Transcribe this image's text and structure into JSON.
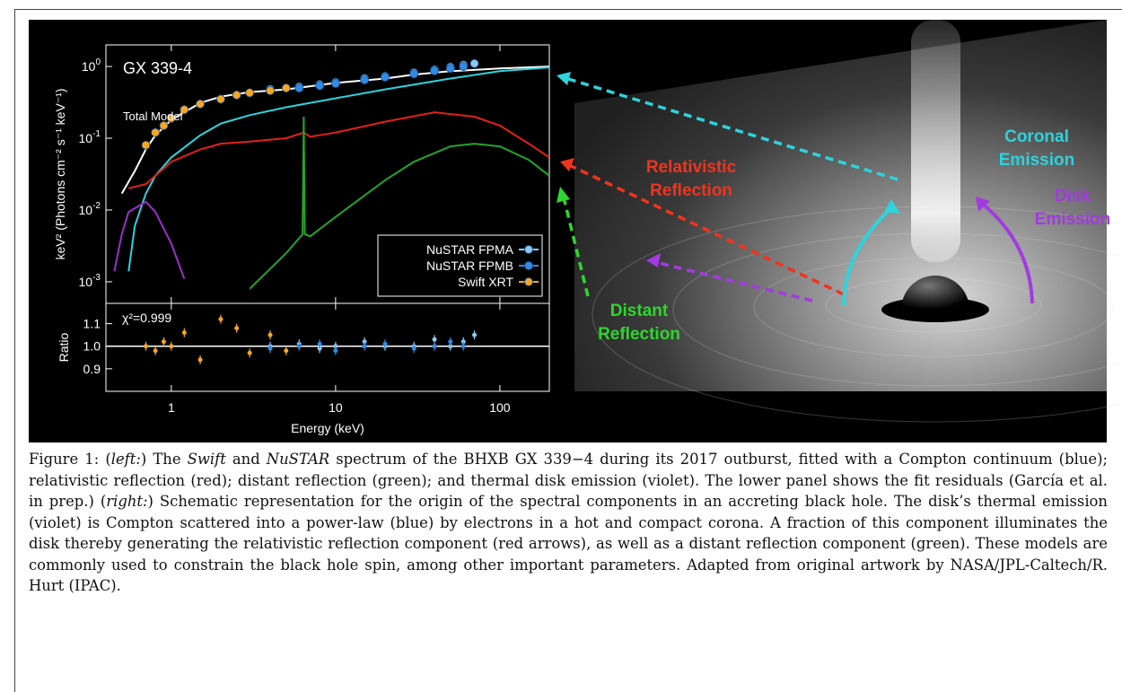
{
  "chart_data": [
    {
      "type": "line",
      "annotations": [
        "GX 339-4",
        "Total Model"
      ],
      "ylabel": "keV² (Photons cm⁻² s⁻¹ keV⁻¹)",
      "log_x": true,
      "log_y": true,
      "xlim": [
        0.4,
        200
      ],
      "ylim": [
        0.0005,
        2
      ],
      "yticks": [
        {
          "value": 1,
          "label": "10",
          "exponent": "0"
        },
        {
          "value": 0.1,
          "label": "10",
          "exponent": "-1"
        },
        {
          "value": 0.01,
          "label": "10",
          "exponent": "-2"
        },
        {
          "value": 0.001,
          "label": "10",
          "exponent": "-3"
        }
      ],
      "legend": "lower right",
      "series": [
        {
          "color": "#ffffff",
          "x": [
            0.5,
            0.6,
            0.7,
            0.8,
            1,
            1.5,
            2,
            3,
            5,
            7,
            10,
            20,
            30,
            50,
            100,
            200
          ],
          "values": [
            0.017,
            0.035,
            0.07,
            0.11,
            0.18,
            0.31,
            0.38,
            0.44,
            0.48,
            0.53,
            0.59,
            0.68,
            0.77,
            0.86,
            0.94,
            1.0
          ]
        },
        {
          "color": "#2ed3dc",
          "x": [
            0.55,
            0.6,
            0.7,
            0.8,
            1,
            1.5,
            2,
            3,
            5,
            10,
            20,
            50,
            100,
            200
          ],
          "values": [
            0.0014,
            0.006,
            0.017,
            0.03,
            0.054,
            0.11,
            0.16,
            0.21,
            0.27,
            0.36,
            0.48,
            0.68,
            0.86,
            0.97
          ]
        },
        {
          "color": "#e3201b",
          "x": [
            0.55,
            0.7,
            0.8,
            1,
            1.5,
            2,
            3,
            5,
            6.4,
            7,
            10,
            20,
            40,
            70,
            100,
            150,
            200
          ],
          "values": [
            0.02,
            0.023,
            0.03,
            0.047,
            0.07,
            0.084,
            0.09,
            0.1,
            0.12,
            0.105,
            0.12,
            0.17,
            0.23,
            0.2,
            0.15,
            0.084,
            0.054
          ]
        },
        {
          "color": "#23a52a",
          "x": [
            3,
            5,
            6.3,
            6.4,
            6.5,
            7,
            10,
            20,
            30,
            50,
            70,
            100,
            150,
            200
          ],
          "values": [
            0.0008,
            0.0025,
            0.0046,
            0.2,
            0.0046,
            0.0043,
            0.008,
            0.026,
            0.047,
            0.077,
            0.084,
            0.077,
            0.05,
            0.03
          ]
        },
        {
          "color": "#9b2fc9",
          "x": [
            0.45,
            0.5,
            0.55,
            0.7,
            0.8,
            1,
            1.2
          ],
          "values": [
            0.0014,
            0.0046,
            0.0094,
            0.013,
            0.0094,
            0.0034,
            0.0011
          ]
        },
        {
          "name": "NuSTAR FPMA",
          "color": "#8ec9ee",
          "style": "points",
          "x": [
            4,
            6,
            8,
            10,
            15,
            20,
            30,
            40,
            50,
            60,
            70
          ],
          "values": [
            0.48,
            0.52,
            0.56,
            0.6,
            0.68,
            0.73,
            0.82,
            0.9,
            0.98,
            1.05,
            1.1
          ]
        },
        {
          "name": "NuSTAR FPMB",
          "color": "#2f8be6",
          "style": "points",
          "x": [
            4,
            6,
            8,
            10,
            15,
            20,
            30,
            40,
            50,
            60
          ],
          "values": [
            0.46,
            0.5,
            0.54,
            0.58,
            0.65,
            0.71,
            0.79,
            0.87,
            0.94,
            1.0
          ]
        },
        {
          "name": "Swift XRT",
          "color": "#f5a623",
          "style": "points",
          "x": [
            0.7,
            0.8,
            0.9,
            1,
            1.2,
            1.5,
            2,
            2.5,
            3,
            4,
            5
          ],
          "values": [
            0.08,
            0.12,
            0.15,
            0.19,
            0.25,
            0.3,
            0.35,
            0.4,
            0.43,
            0.46,
            0.5
          ]
        }
      ]
    },
    {
      "type": "line",
      "annotation": "χ²=0.999",
      "ylabel": "Ratio",
      "xlabel": "Energy (keV)",
      "log_x": true,
      "xlim": [
        0.4,
        200
      ],
      "ylim": [
        0.8,
        1.19
      ],
      "xticks": [
        1,
        10,
        100
      ],
      "yticks": [
        1.1,
        {
          "value": 1,
          "label": "1.0"
        },
        0.9
      ],
      "reference_line": 1,
      "series": [
        {
          "color": "#8ec9ee",
          "style": "points",
          "x": [
            4,
            6,
            8,
            10,
            15,
            20,
            30,
            40,
            50,
            60,
            70
          ],
          "values": [
            1.0,
            1.01,
            0.99,
            1.0,
            1.02,
            1.0,
            1.0,
            1.03,
            1.0,
            1.02,
            1.05
          ]
        },
        {
          "color": "#2f8be6",
          "style": "points",
          "x": [
            4,
            6,
            8,
            10,
            15,
            20,
            30,
            40,
            50,
            60
          ],
          "values": [
            0.99,
            1.0,
            1.01,
            0.98,
            1.0,
            1.01,
            0.99,
            1.0,
            1.02,
            1.0
          ]
        },
        {
          "color": "#f5a623",
          "style": "points",
          "x": [
            0.7,
            0.8,
            0.9,
            1,
            1.2,
            1.5,
            2,
            2.5,
            3,
            4,
            5
          ],
          "values": [
            1.0,
            0.98,
            1.02,
            1.0,
            1.06,
            0.94,
            1.12,
            1.08,
            0.97,
            1.05,
            0.98
          ]
        }
      ]
    }
  ],
  "illustration": {
    "labels": [
      {
        "lines": [
          "Coronal",
          "Emission"
        ],
        "color": "#2ed3dc"
      },
      {
        "lines": [
          "Relativistic",
          "Reflection"
        ],
        "color": "#f0341e"
      },
      {
        "lines": [
          "Disk",
          "Emission"
        ],
        "color": "#a23be0"
      },
      {
        "lines": [
          "Distant",
          "Reflection"
        ],
        "color": "#2fd62f"
      }
    ]
  },
  "caption": {
    "label": "Figure 1:",
    "segments": [
      " (",
      {
        "italic": "left:"
      },
      ") The ",
      {
        "italic": "Swift"
      },
      " and ",
      {
        "italic": "NuSTAR"
      },
      " spectrum of the BHXB GX 339−4 during its 2017 outburst, fitted with a Compton continuum (blue); relativistic reflection (red); distant reflection (green); and thermal disk emission (violet). The lower panel shows the fit residuals (García et al. in prep.) (",
      {
        "italic": "right:"
      },
      ") Schematic representation for the origin of the spectral components in an accreting black hole. The disk’s thermal emission (violet) is Compton scattered into a power-law (blue) by electrons in a hot and compact corona. A fraction of this component illuminates the disk thereby generating the relativistic reflection component (red arrows), as well as a distant reflection component (green). These models are commonly used to constrain the black hole spin, among other important parameters. Adapted from original artwork by NASA/JPL-Caltech/R. Hurt (IPAC)."
    ]
  }
}
